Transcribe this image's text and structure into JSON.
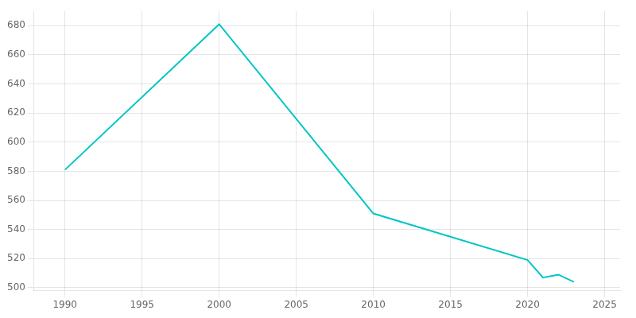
{
  "chart_data": {
    "type": "line",
    "x": [
      1990,
      2000,
      2010,
      2020,
      2021,
      2022,
      2023
    ],
    "values": [
      581,
      681,
      551,
      519,
      507,
      509,
      504
    ],
    "color": "#00C5C5",
    "xlim": [
      1988,
      2026
    ],
    "ylim": [
      498,
      690
    ],
    "xticks": [
      1990,
      1995,
      2000,
      2005,
      2010,
      2015,
      2020,
      2025
    ],
    "yticks": [
      500,
      520,
      540,
      560,
      580,
      600,
      620,
      640,
      660,
      680
    ],
    "grid": true
  }
}
